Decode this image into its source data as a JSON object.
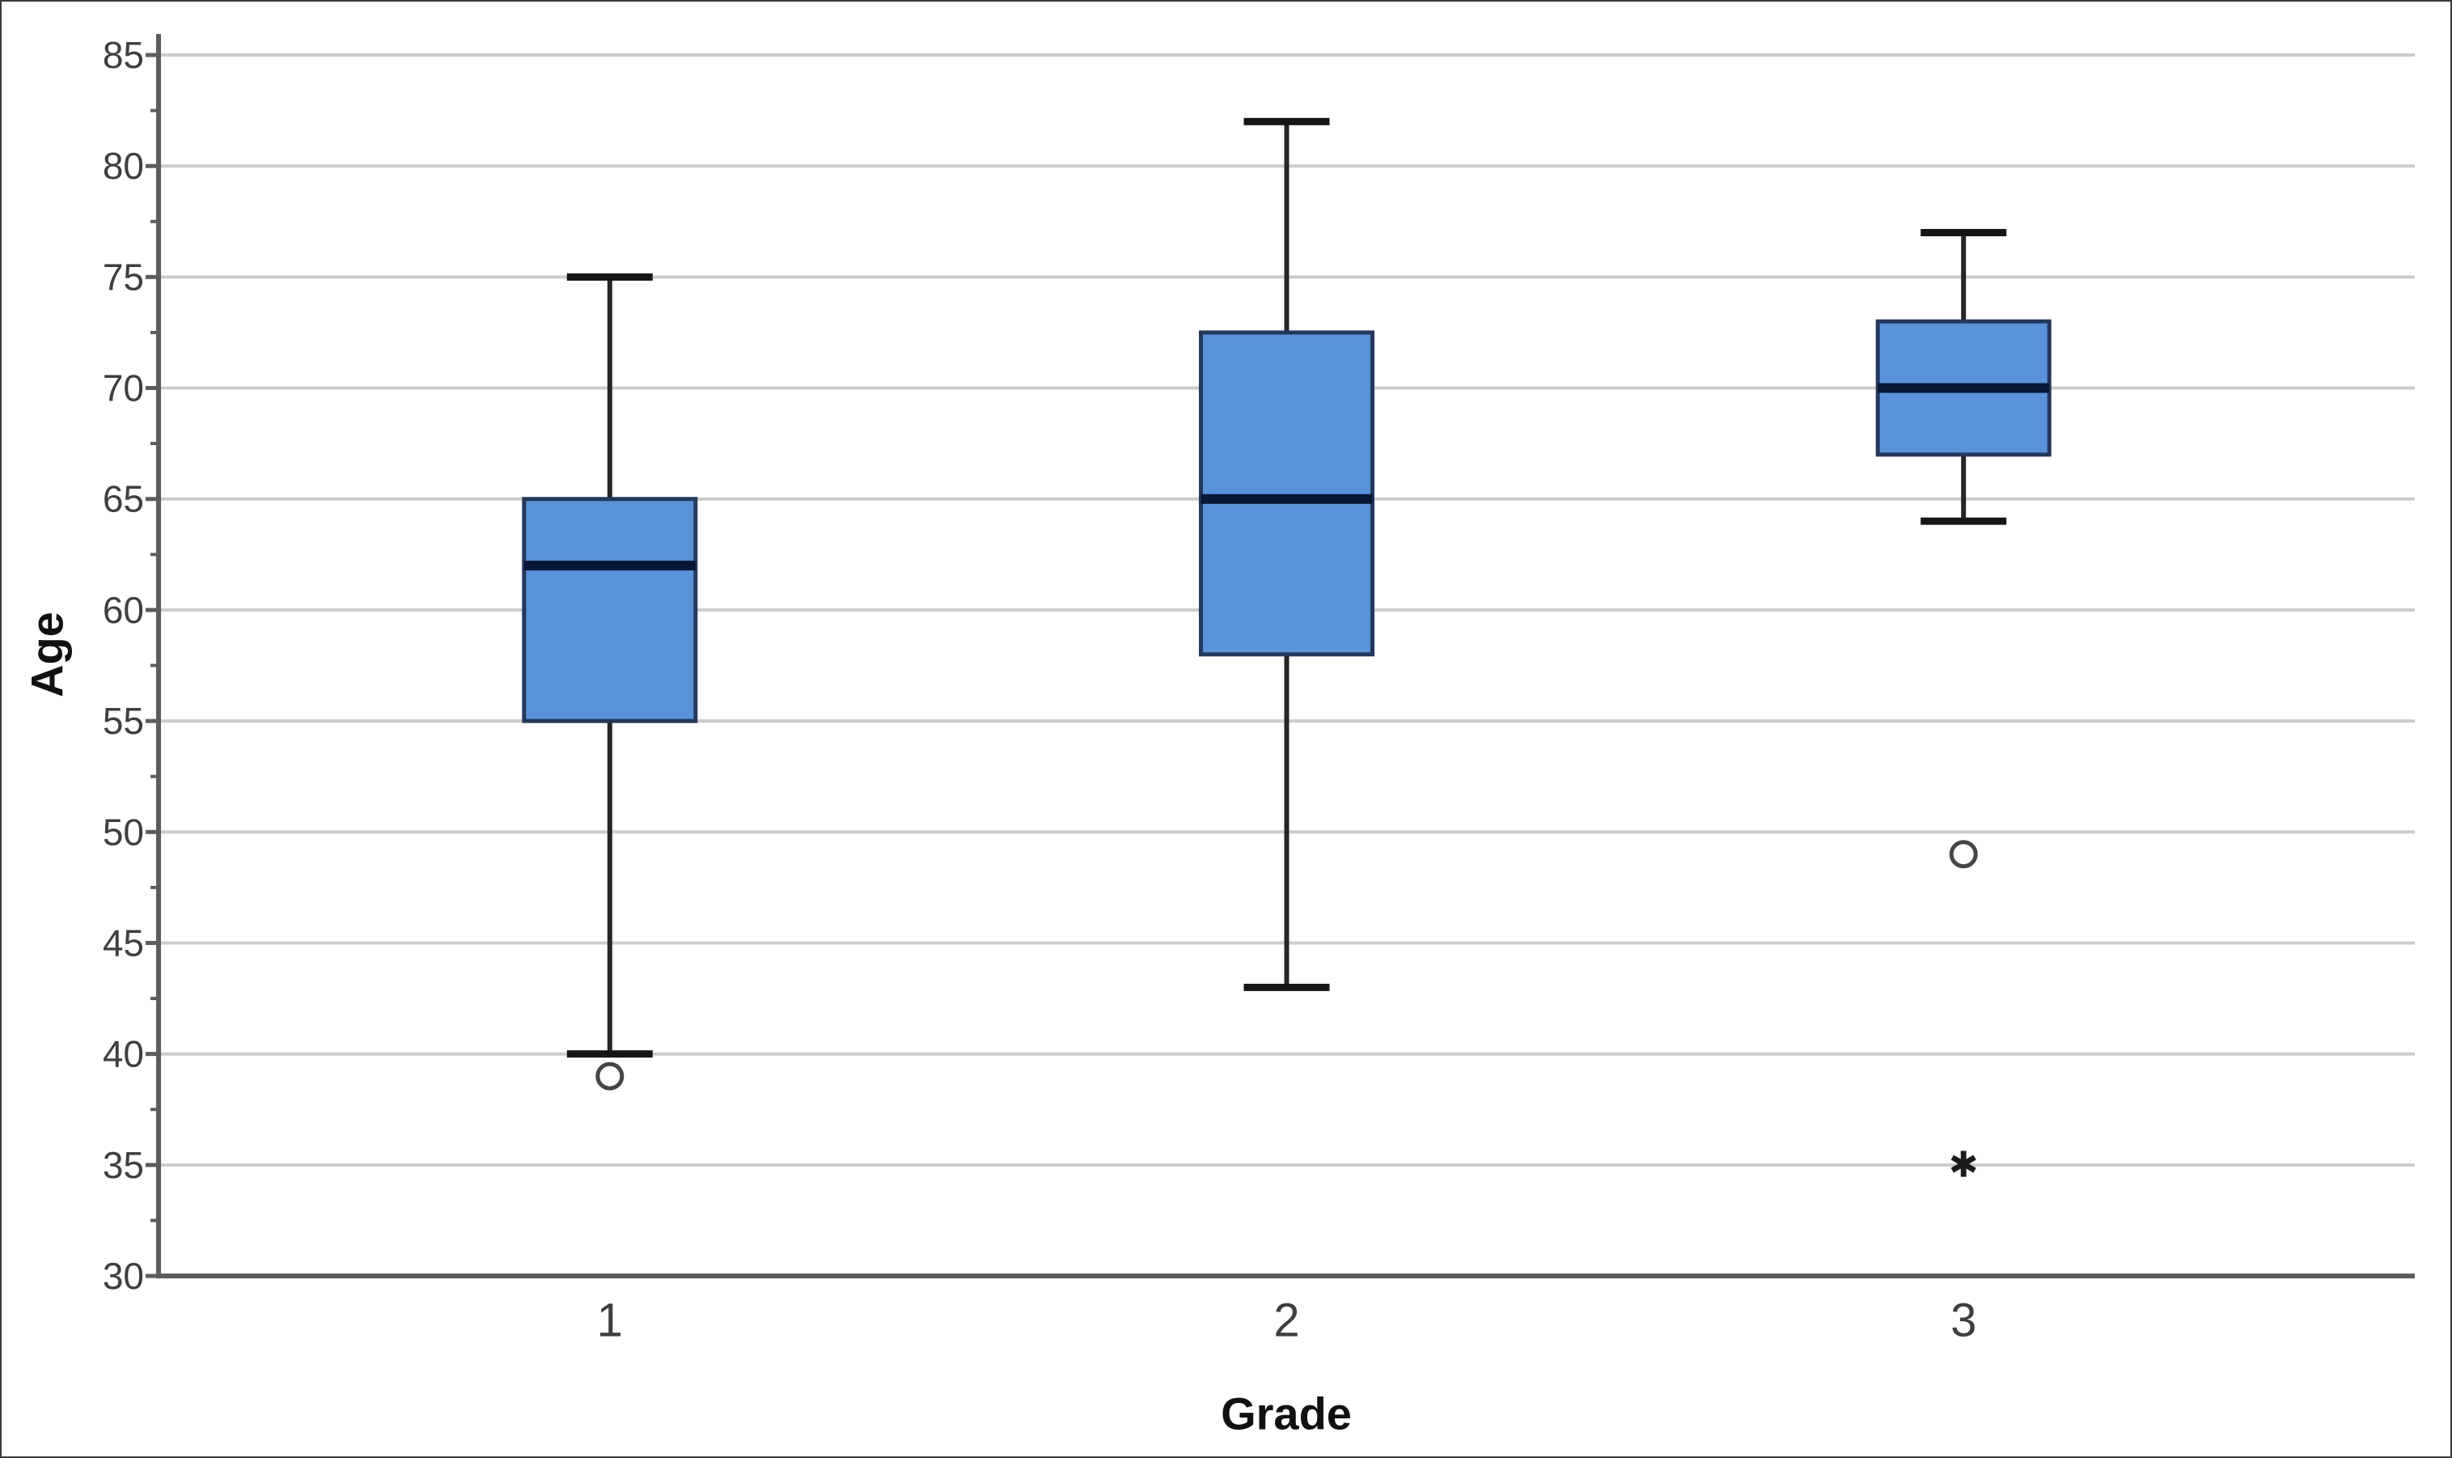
{
  "chart_data": {
    "type": "box",
    "title": "",
    "xlabel": "Grade",
    "ylabel": "Age",
    "ylim": [
      30,
      85
    ],
    "ytick_major_step": 5,
    "ytick_minor_step": 2.5,
    "ytick_labels": [
      "30",
      "35",
      "40",
      "45",
      "50",
      "55",
      "60",
      "65",
      "70",
      "75",
      "80",
      "85"
    ],
    "grid": "horizontal-major",
    "legend": "none",
    "categories": [
      "1",
      "2",
      "3"
    ],
    "series": [
      {
        "category": "1",
        "whisker_low": 40,
        "q1": 55,
        "median": 62,
        "q3": 65,
        "whisker_high": 75,
        "outliers": [
          {
            "value": 39,
            "marker": "circle"
          }
        ]
      },
      {
        "category": "2",
        "whisker_low": 43,
        "q1": 58,
        "median": 65,
        "q3": 72.5,
        "whisker_high": 82,
        "outliers": []
      },
      {
        "category": "3",
        "whisker_low": 64,
        "q1": 67,
        "median": 70,
        "q3": 73,
        "whisker_high": 77,
        "outliers": [
          {
            "value": 49,
            "marker": "circle"
          },
          {
            "value": 35,
            "marker": "star"
          }
        ]
      }
    ],
    "colors": {
      "box_fill": "#5792da",
      "box_border": "#24385c",
      "median_line": "#081733",
      "whisker": "#262626",
      "whisker_cap": "#161616",
      "gridline": "#cccccc",
      "axis_line": "#5c5c5c",
      "tick_label": "#3f3f3f",
      "axis_title": "#111111",
      "outlier": "#454545"
    },
    "star_glyph": "✱"
  }
}
